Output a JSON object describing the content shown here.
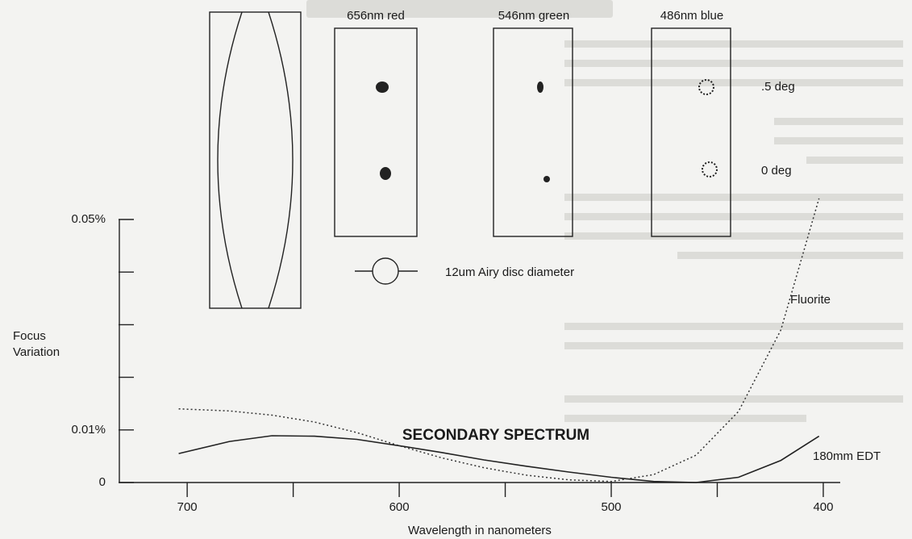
{
  "chart_data": {
    "type": "line",
    "title": "SECONDARY SPECTRUM",
    "x_label": "Wavelength in nanometers",
    "y_label": [
      "Focus",
      "Variation"
    ],
    "x": [
      704,
      680,
      660,
      640,
      620,
      600,
      580,
      560,
      540,
      520,
      500,
      480,
      460,
      440,
      420,
      402
    ],
    "series": [
      {
        "name": "180mm EDT",
        "color": "#222222",
        "style": "solid",
        "values": [
          0.0055,
          0.0078,
          0.0089,
          0.0088,
          0.0082,
          0.007,
          0.0057,
          0.0043,
          0.0031,
          0.002,
          0.001,
          0.0002,
          0.0,
          0.001,
          0.0042,
          0.0088
        ]
      },
      {
        "name": "Fluorite",
        "color": "#333333",
        "style": "dotted",
        "values": [
          0.014,
          0.0136,
          0.0128,
          0.0115,
          0.0095,
          0.007,
          0.0047,
          0.0028,
          0.0014,
          0.0005,
          0.0002,
          0.0015,
          0.0052,
          0.0135,
          0.029,
          0.054
        ]
      }
    ],
    "xlim": [
      732,
      392
    ],
    "xticks": [
      700,
      600,
      500,
      400
    ],
    "xminorticks": [
      650,
      550,
      450
    ],
    "ylim": [
      0,
      0.05
    ],
    "yticks": [
      0,
      {
        "value": 0.01,
        "label": "0.01%"
      },
      {
        "value": 0.05,
        "label": "0.05%"
      }
    ],
    "yminorticks": [
      0.02,
      0.03,
      0.04
    ],
    "spot_panels": [
      "656nm red",
      "546nm green",
      "486nm blue"
    ],
    "field_labels": [
      ".5 deg",
      "0 deg"
    ],
    "airy_label": "12um Airy disc diameter"
  }
}
